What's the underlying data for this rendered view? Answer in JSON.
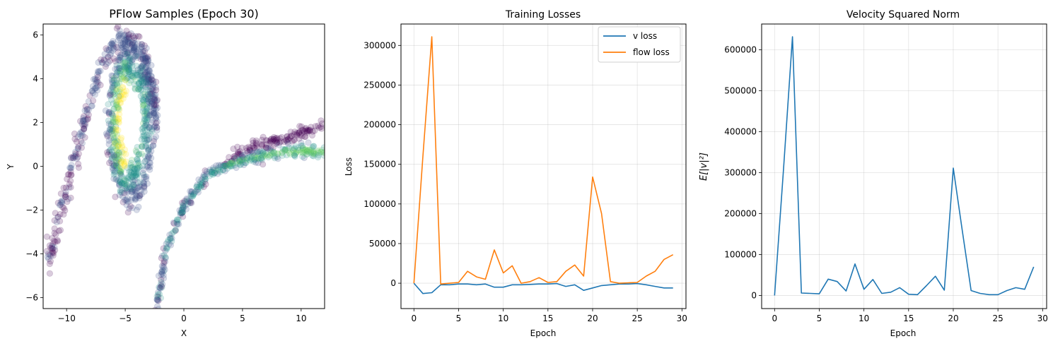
{
  "chart_data": [
    {
      "type": "scatter",
      "title": "PFlow Samples (Epoch 30)",
      "xlabel": "X",
      "ylabel": "Y",
      "xlim": [
        -12,
        12
      ],
      "ylim": [
        -6.5,
        6.5
      ],
      "xticks": [
        -10,
        -5,
        0,
        5,
        10
      ],
      "yticks": [
        -6,
        -4,
        -2,
        0,
        2,
        4,
        6
      ],
      "xtick_labels": [
        "−10",
        "−5",
        "0",
        "5",
        "10"
      ],
      "ytick_labels": [
        "−6",
        "−4",
        "−2",
        "0",
        "2",
        "4",
        "6"
      ],
      "grid": false,
      "colormap": [
        "#440154",
        "#3b528b",
        "#21918c",
        "#5ec962",
        "#fde725"
      ],
      "point_alpha": 0.2,
      "loop": {
        "center": [
          -4.5,
          2.0
        ],
        "rx_outer": 2.0,
        "ry_outer": 3.9,
        "rx_inner": 1.05,
        "ry_inner": 1.9
      },
      "outer_arc": [
        [
          -11.5,
          -4.2
        ],
        [
          -10.4,
          -1.8
        ],
        [
          -9.2,
          0.6
        ],
        [
          -8.0,
          3.0
        ],
        [
          -6.8,
          4.9
        ],
        [
          -5.5,
          5.9
        ],
        [
          -4.2,
          5.6
        ],
        [
          -3.2,
          4.8
        ],
        [
          -2.6,
          3.2
        ],
        [
          -2.3,
          1.8
        ]
      ],
      "lower_arc": [
        [
          -2.3,
          -6.4
        ],
        [
          -1.5,
          -3.8
        ],
        [
          0.0,
          -1.8
        ],
        [
          2.0,
          -0.4
        ],
        [
          4.0,
          0.1
        ],
        [
          6.0,
          0.4
        ],
        [
          8.0,
          0.6
        ],
        [
          10.0,
          0.7
        ],
        [
          12.0,
          0.7
        ]
      ],
      "upper_arc": [
        [
          3.5,
          0.2
        ],
        [
          5.0,
          0.7
        ],
        [
          6.5,
          1.0
        ],
        [
          8.0,
          1.2
        ],
        [
          10.0,
          1.5
        ],
        [
          12.0,
          1.8
        ]
      ]
    },
    {
      "type": "line",
      "title": "Training Losses",
      "xlabel": "Epoch",
      "ylabel": "Loss",
      "xlim": [
        -1.45,
        30.45
      ],
      "ylim": [
        -32000,
        327000
      ],
      "xticks": [
        0,
        5,
        10,
        15,
        20,
        25,
        30
      ],
      "yticks": [
        0,
        50000,
        100000,
        150000,
        200000,
        250000,
        300000
      ],
      "xtick_labels": [
        "0",
        "5",
        "10",
        "15",
        "20",
        "25",
        "30"
      ],
      "ytick_labels": [
        "0",
        "50000",
        "100000",
        "150000",
        "200000",
        "250000",
        "300000"
      ],
      "grid": true,
      "legend_position": "top-right",
      "x": [
        0,
        1,
        2,
        3,
        4,
        5,
        6,
        7,
        8,
        9,
        10,
        11,
        12,
        13,
        14,
        15,
        16,
        17,
        18,
        19,
        20,
        21,
        22,
        23,
        24,
        25,
        26,
        27,
        28,
        29
      ],
      "series": [
        {
          "name": "v loss",
          "color": "#1f77b4",
          "values": [
            0,
            -13000,
            -12000,
            -2000,
            -2000,
            -1000,
            -1000,
            -2000,
            -1000,
            -5000,
            -5000,
            -2000,
            -2000,
            -1500,
            -1000,
            -1000,
            -500,
            -4000,
            -2000,
            -9000,
            -6000,
            -3000,
            -2000,
            -1000,
            -1000,
            -500,
            -2000,
            -4000,
            -6000,
            -6000
          ]
        },
        {
          "name": "flow loss",
          "color": "#ff7f0e",
          "values": [
            0,
            160000,
            311000,
            -1000,
            0,
            1000,
            15000,
            8000,
            5000,
            42000,
            13000,
            22000,
            0,
            2000,
            7000,
            1000,
            2000,
            15000,
            23000,
            9000,
            134000,
            88000,
            2000,
            0,
            500,
            1000,
            9000,
            15000,
            30000,
            36000
          ]
        }
      ]
    },
    {
      "type": "line",
      "title": "Velocity Squared Norm",
      "xlabel": "Epoch",
      "ylabel": "E[|v|²]",
      "xlim": [
        -1.45,
        30.45
      ],
      "ylim": [
        -32000,
        663000
      ],
      "xticks": [
        0,
        5,
        10,
        15,
        20,
        25,
        30
      ],
      "yticks": [
        0,
        100000,
        200000,
        300000,
        400000,
        500000,
        600000
      ],
      "xtick_labels": [
        "0",
        "5",
        "10",
        "15",
        "20",
        "25",
        "30"
      ],
      "ytick_labels": [
        "0",
        "100000",
        "200000",
        "300000",
        "400000",
        "500000",
        "600000"
      ],
      "grid": true,
      "x": [
        0,
        1,
        2,
        3,
        4,
        5,
        6,
        7,
        8,
        9,
        10,
        11,
        12,
        13,
        14,
        15,
        16,
        17,
        18,
        19,
        20,
        21,
        22,
        23,
        24,
        25,
        26,
        27,
        28,
        29
      ],
      "series": [
        {
          "color": "#1f77b4",
          "values": [
            0,
            310000,
            632000,
            6000,
            5000,
            4000,
            40000,
            34000,
            11000,
            77000,
            15000,
            39000,
            5000,
            8000,
            19000,
            3000,
            2000,
            24000,
            47000,
            13000,
            311000,
            160000,
            12000,
            5000,
            2000,
            2000,
            12000,
            19000,
            15000,
            70000
          ]
        }
      ]
    }
  ]
}
